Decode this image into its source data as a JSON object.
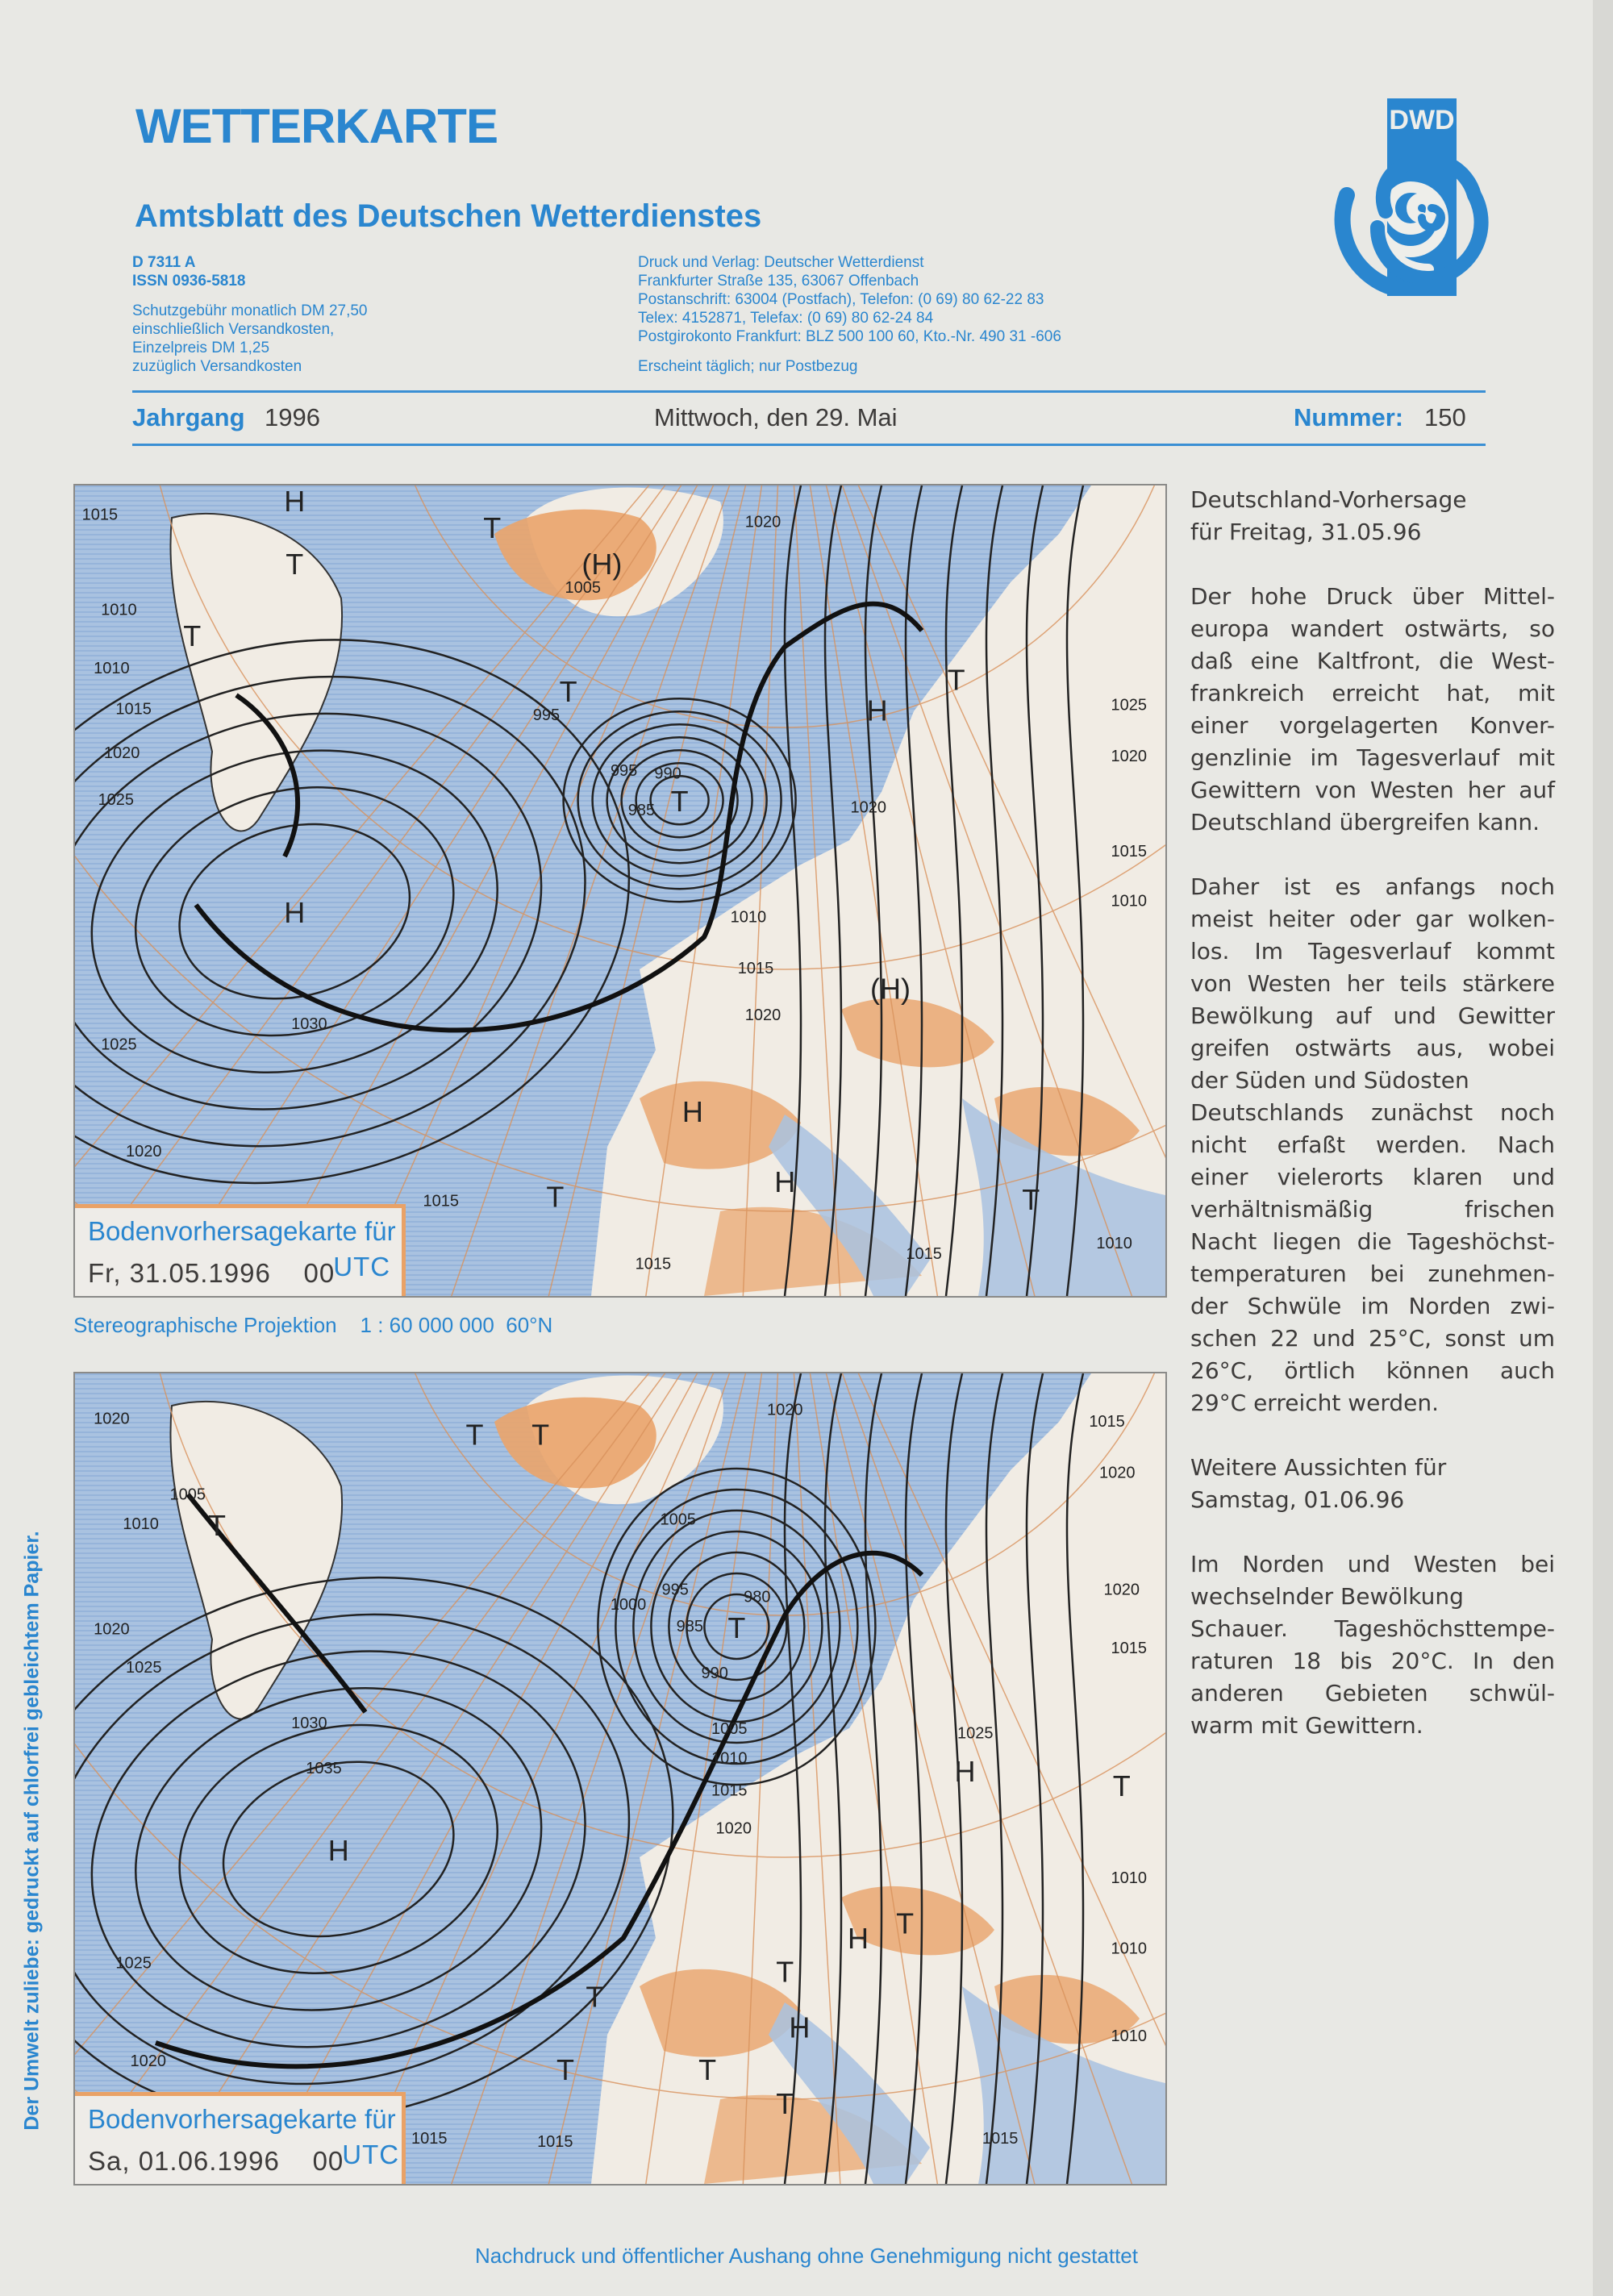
{
  "header": {
    "title": "WETTERKARTE",
    "subtitle": "Amtsblatt des Deutschen Wetterdienstes",
    "logo_text": "DWD",
    "meta_left": {
      "code": "D 7311 A",
      "issn": "ISSN 0936-5818",
      "fee_lines": [
        "Schutzgebühr monatlich DM 27,50",
        "einschließlich Versandkosten,",
        "Einzelpreis DM 1,25",
        "zuzüglich Versandkosten"
      ]
    },
    "meta_right": {
      "lines": [
        "Druck und Verlag: Deutscher Wetterdienst",
        "Frankfurter Straße 135, 63067 Offenbach",
        "Postanschrift: 63004 (Postfach), Telefon: (0 69) 80 62-22 83",
        "Telex: 4152871, Telefax: (0 69) 80 62-24 84",
        "Postgirokonto Frankfurt: BLZ 500 100 60, Kto.-Nr. 490 31 -606"
      ],
      "note": "Erscheint täglich; nur Postbezug"
    },
    "year_label": "Jahrgang",
    "year": "1996",
    "date": "Mittwoch, den 29. Mai",
    "number_label": "Nummer:",
    "number": "150"
  },
  "maps": [
    {
      "caption_title": "Bodenvorhersagekarte für",
      "caption_date": "Fr, 31.05.1996",
      "caption_hour": "00",
      "caption_unit": "UTC",
      "labels": [
        "H",
        "T",
        "(H)",
        "1005",
        "T",
        "T",
        "T",
        "995",
        "H",
        "T",
        "990",
        "985",
        "995",
        "H",
        "T",
        "(H)",
        "H",
        "H",
        "T",
        "T",
        "1015",
        "1010",
        "1010",
        "1015",
        "1020",
        "1025",
        "1030",
        "1025",
        "1020",
        "1015",
        "1015",
        "1015",
        "1010",
        "1015",
        "1020",
        "1020",
        "1020",
        "1025",
        "1020",
        "1015",
        "1010",
        "1010"
      ]
    },
    {
      "caption_title": "Bodenvorhersagekarte für",
      "caption_date": "Sa, 01.06.1996",
      "caption_hour": "00",
      "caption_unit": "UTC",
      "labels": [
        "1020",
        "1010",
        "1005",
        "T",
        "T",
        "T",
        "1020",
        "1025",
        "1030",
        "1035",
        "H",
        "1025",
        "1020",
        "T",
        "T",
        "T",
        "T",
        "H",
        "T",
        "H",
        "T",
        "1000",
        "995",
        "985",
        "980",
        "990",
        "T",
        "1005",
        "1010",
        "1015",
        "1020",
        "1025",
        "H",
        "1020",
        "1005",
        "1015",
        "1015",
        "1015",
        "1010",
        "1010",
        "1010",
        "1015",
        "1020",
        "1020",
        "1015",
        "T"
      ]
    }
  ],
  "projection": "Stereographische Projektion    1 : 60 000 000  60°N",
  "forecast": {
    "paragraphs": [
      [
        "Deutschland-Vorhersage",
        "für Freitag, 31.05.96"
      ],
      [
        "Der hohe Druck über Mittel-",
        "europa wandert ostwärts, so",
        "daß eine Kaltfront, die West-",
        "frankreich erreicht hat, mit",
        "einer vorgelagerten Konver-",
        "genzlinie im Tagesverlauf mit",
        "Gewittern von Westen her auf",
        "Deutschland übergreifen kann."
      ],
      [
        "Daher ist es anfangs noch",
        "meist heiter oder gar wolken-",
        "los. Im Tagesverlauf kommt",
        "von Westen her teils stärkere",
        "Bewölkung auf und Gewitter",
        "greifen ostwärts aus, wobei",
        "der Süden und Südosten",
        "Deutschlands zunächst noch",
        "nicht erfaßt werden. Nach",
        "einer vielerorts klaren und",
        "verhältnismäßig frischen",
        "Nacht liegen die Tageshöchst-",
        "temperaturen bei zunehmen-",
        "der Schwüle im Norden zwi-",
        "schen 22 und 25°C, sonst um",
        "26°C, örtlich können auch",
        "29°C erreicht werden."
      ],
      [
        "Weitere Aussichten für",
        "Samstag, 01.06.96"
      ],
      [
        "Im Norden und Westen bei",
        "wechselnder Bewölkung",
        "Schauer. Tageshöchsttempe-",
        "raturen 18 bis 20°C. In den",
        "anderen Gebieten schwül-",
        "warm mit Gewittern."
      ]
    ]
  },
  "side_note": "Der Umwelt zuliebe: gedruckt auf chlorfrei gebleichtem Papier.",
  "footer": "Nachdruck und öffentlicher Aushang ohne Genehmigung nicht gestattet",
  "colors": {
    "brand_blue": "#2a86cf",
    "sea": "#a9c2e0",
    "land": "#f1ece4",
    "relief": "#eaa46a",
    "text": "#3d3b3a"
  }
}
